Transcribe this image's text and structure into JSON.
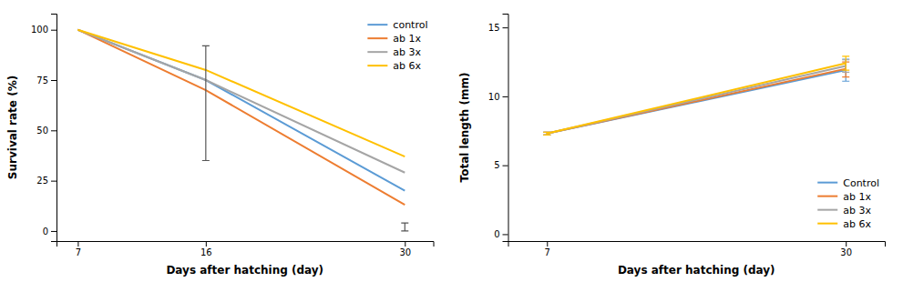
{
  "chart_data": [
    {
      "type": "line",
      "xlabel": "Days after hatching (day)",
      "ylabel": "Survival rate (%)",
      "x": [
        7,
        16,
        30
      ],
      "xlim": [
        5.5,
        32
      ],
      "ylim": [
        -5,
        108
      ],
      "xticks": [
        7,
        16,
        30
      ],
      "yticks": [
        0,
        25,
        50,
        75,
        100
      ],
      "legend": "upper right",
      "series": [
        {
          "name": "control",
          "color": "#5B9BD5",
          "values": [
            100,
            75,
            20
          ]
        },
        {
          "name": "ab 1x",
          "color": "#ED7D31",
          "values": [
            100,
            70,
            13
          ]
        },
        {
          "name": "ab 3x",
          "color": "#A5A5A5",
          "values": [
            100,
            75,
            29
          ]
        },
        {
          "name": "ab 6x",
          "color": "#FFC000",
          "values": [
            100,
            80,
            37
          ]
        }
      ],
      "error_bars": [
        {
          "x": 16,
          "low": 35,
          "high": 92,
          "color": "#555555"
        },
        {
          "x": 30,
          "low": 0,
          "high": 4,
          "color": "#555555"
        }
      ]
    },
    {
      "type": "line",
      "xlabel": "Days after hatching (day)",
      "ylabel": "Total length (mm)",
      "x": [
        7,
        30
      ],
      "xlim": [
        4,
        33
      ],
      "ylim": [
        -0.5,
        16
      ],
      "xticks": [
        7,
        30
      ],
      "yticks": [
        0,
        5,
        10,
        15
      ],
      "legend": "lower right",
      "series": [
        {
          "name": "Control",
          "color": "#5B9BD5",
          "values": [
            7.3,
            11.9
          ],
          "error_low": [
            0.1,
            0.8
          ],
          "error_high": [
            0.1,
            0.8
          ]
        },
        {
          "name": "ab 1x",
          "color": "#ED7D31",
          "values": [
            7.3,
            12.0
          ],
          "error_low": [
            0.1,
            0.6
          ],
          "error_high": [
            0.1,
            0.5
          ]
        },
        {
          "name": "ab 3x",
          "color": "#A5A5A5",
          "values": [
            7.3,
            12.2
          ],
          "error_low": [
            0.1,
            0.45
          ],
          "error_high": [
            0.1,
            0.45
          ]
        },
        {
          "name": "ab 6x",
          "color": "#FFC000",
          "values": [
            7.3,
            12.4
          ],
          "error_low": [
            0.1,
            0.5
          ],
          "error_high": [
            0.1,
            0.5
          ]
        }
      ]
    }
  ]
}
